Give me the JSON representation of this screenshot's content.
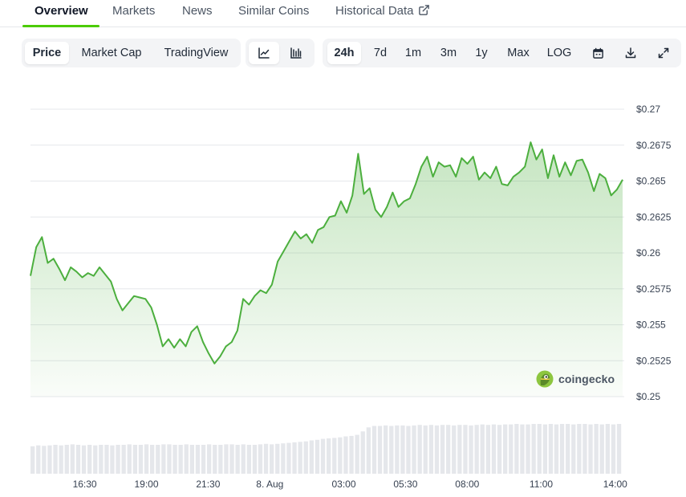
{
  "tabs": [
    {
      "label": "Overview",
      "active": true
    },
    {
      "label": "Markets"
    },
    {
      "label": "News"
    },
    {
      "label": "Similar Coins"
    },
    {
      "label": "Historical Data"
    }
  ],
  "view_toggle": [
    {
      "label": "Price",
      "active": true
    },
    {
      "label": "Market Cap"
    },
    {
      "label": "TradingView"
    }
  ],
  "chart_type_icons": [
    "line-chart-icon",
    "candlestick-chart-icon"
  ],
  "ranges": [
    {
      "label": "24h",
      "active": true
    },
    {
      "label": "7d"
    },
    {
      "label": "1m"
    },
    {
      "label": "3m"
    },
    {
      "label": "1y"
    },
    {
      "label": "Max"
    },
    {
      "label": "LOG"
    }
  ],
  "tool_icons": [
    "calendar-icon",
    "download-icon",
    "fullscreen-icon"
  ],
  "brand": {
    "name": "coingecko",
    "accent": "#4bcc00",
    "line": "#4caf3e"
  },
  "chart_data": {
    "type": "area",
    "y_ticks": [
      "$0.27",
      "$0.2675",
      "$0.265",
      "$0.2625",
      "$0.26",
      "$0.2575",
      "$0.255",
      "$0.2525",
      "$0.25"
    ],
    "x_ticks": [
      "16:30",
      "19:00",
      "21:30",
      "8. Aug",
      "03:00",
      "05:30",
      "08:00",
      "11:00",
      "14:00"
    ],
    "x_tick_hours": [
      16.5,
      19,
      21.5,
      24,
      27,
      29.5,
      32,
      35,
      38
    ],
    "x_start_hour": 14.3,
    "x_end_hour": 38.3,
    "ylim": [
      0.25,
      0.27
    ],
    "series": [
      {
        "values": [
          0.2584,
          0.2604,
          0.2611,
          0.2593,
          0.2596,
          0.2589,
          0.2581,
          0.259,
          0.2587,
          0.2583,
          0.2586,
          0.2584,
          0.259,
          0.2585,
          0.258,
          0.2568,
          0.256,
          0.2565,
          0.257,
          0.2569,
          0.2568,
          0.2562,
          0.255,
          0.2535,
          0.254,
          0.2534,
          0.254,
          0.2535,
          0.2545,
          0.2549,
          0.2538,
          0.253,
          0.2523,
          0.2528,
          0.2535,
          0.2538,
          0.2546,
          0.2568,
          0.2564,
          0.257,
          0.2574,
          0.2572,
          0.2578,
          0.2594,
          0.2601,
          0.2608,
          0.2615,
          0.261,
          0.2613,
          0.2607,
          0.2616,
          0.2618,
          0.2625,
          0.2626,
          0.2636,
          0.2628,
          0.264,
          0.2669,
          0.2641,
          0.2645,
          0.263,
          0.2625,
          0.2632,
          0.2642,
          0.2632,
          0.2636,
          0.2638,
          0.2648,
          0.266,
          0.2667,
          0.2653,
          0.2663,
          0.266,
          0.2661,
          0.2653,
          0.2666,
          0.2662,
          0.2667,
          0.2651,
          0.2656,
          0.2652,
          0.266,
          0.2648,
          0.2647,
          0.2653,
          0.2656,
          0.266,
          0.2677,
          0.2665,
          0.2672,
          0.2652,
          0.2668,
          0.2653,
          0.2663,
          0.2654,
          0.2664,
          0.2665,
          0.2656,
          0.2643,
          0.2655,
          0.2652,
          0.264,
          0.2644,
          0.2651
        ]
      }
    ],
    "volume": [
      0.55,
      0.57,
      0.56,
      0.57,
      0.58,
      0.57,
      0.58,
      0.59,
      0.58,
      0.57,
      0.58,
      0.57,
      0.58,
      0.58,
      0.57,
      0.58,
      0.58,
      0.59,
      0.58,
      0.58,
      0.59,
      0.58,
      0.58,
      0.59,
      0.59,
      0.58,
      0.58,
      0.59,
      0.58,
      0.58,
      0.58,
      0.59,
      0.58,
      0.58,
      0.59,
      0.59,
      0.58,
      0.59,
      0.58,
      0.58,
      0.59,
      0.6,
      0.59,
      0.6,
      0.61,
      0.62,
      0.63,
      0.64,
      0.65,
      0.67,
      0.68,
      0.7,
      0.71,
      0.72,
      0.73,
      0.75,
      0.76,
      0.78,
      0.85,
      0.93,
      0.96,
      0.96,
      0.97,
      0.96,
      0.97,
      0.97,
      0.96,
      0.97,
      0.98,
      0.97,
      0.98,
      0.97,
      0.98,
      0.98,
      0.97,
      0.98,
      0.98,
      0.97,
      0.98,
      0.99,
      0.98,
      0.99,
      0.98,
      0.99,
      0.99,
      1.0,
      0.99,
      0.99,
      1.0,
      1.0,
      0.99,
      1.0,
      0.99,
      1.0,
      1.0,
      0.99,
      1.0,
      1.0,
      0.99,
      1.0,
      0.99,
      1.0,
      0.99,
      1.0
    ]
  }
}
